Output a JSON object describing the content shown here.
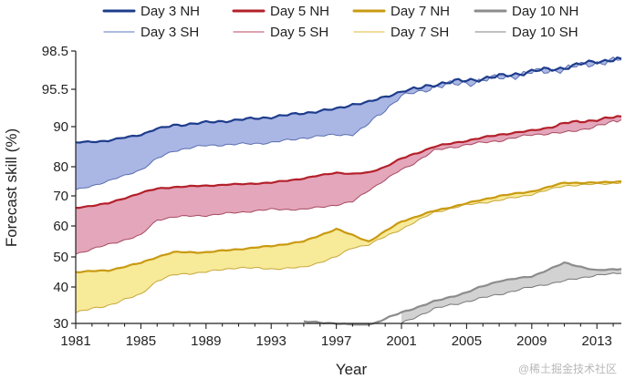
{
  "chart_data": {
    "type": "area",
    "xlabel": "Year",
    "ylabel": "Forecast skill (%)",
    "x_range": [
      1981,
      2014.5
    ],
    "y_range": [
      30,
      98.5
    ],
    "y_scale": "stretched (non-linear, finer near 100%)",
    "xticks": [
      1981,
      1985,
      1989,
      1993,
      1997,
      2001,
      2005,
      2009,
      2013
    ],
    "yticks": [
      30,
      40,
      50,
      60,
      70,
      80,
      90,
      95.5,
      98.5
    ],
    "ytick_labels": [
      "30",
      "40",
      "50",
      "60",
      "70",
      "80",
      "90",
      "95.5",
      "98.5"
    ],
    "grid": false,
    "legend_position": "top",
    "x": [
      1981,
      1983,
      1985,
      1986,
      1987,
      1989,
      1991,
      1993,
      1995,
      1997,
      1998,
      1999,
      2001,
      2003,
      2005,
      2007,
      2009,
      2011,
      2013,
      2014.5
    ],
    "series": [
      {
        "name": "Day 3 NH",
        "values": [
          86,
          86.5,
          88,
          89.5,
          90.2,
          90.6,
          91,
          91.4,
          92,
          92.6,
          93.3,
          93.6,
          95.2,
          95.9,
          96.2,
          96.5,
          96.9,
          97.2,
          97.7,
          97.9
        ]
      },
      {
        "name": "Day 3 SH",
        "values": [
          72,
          75,
          79,
          82,
          84,
          85.3,
          85.6,
          86,
          87.2,
          88,
          88,
          90.5,
          94.5,
          95.7,
          96.0,
          96.4,
          96.8,
          97.1,
          97.6,
          97.8
        ]
      },
      {
        "name": "Day 5 NH",
        "values": [
          66,
          67.5,
          71,
          72.5,
          73,
          73.5,
          74,
          74.5,
          76,
          78,
          77.5,
          78,
          82,
          85,
          86.5,
          88,
          89,
          90.5,
          91,
          91.5
        ]
      },
      {
        "name": "Day 5 SH",
        "values": [
          51,
          54,
          57,
          62,
          63,
          63.5,
          64.5,
          65.5,
          65.5,
          67,
          68,
          72,
          79,
          84,
          85.5,
          86.5,
          88,
          88.5,
          90,
          91
        ]
      },
      {
        "name": "Day 7 NH",
        "values": [
          45,
          45.5,
          48,
          50,
          51.5,
          51.5,
          52.5,
          53.5,
          55,
          59,
          57,
          55,
          61.5,
          65,
          67.5,
          70,
          71.5,
          74.5,
          74.5,
          75
        ]
      },
      {
        "name": "Day 7 SH",
        "values": [
          33,
          35,
          38,
          42,
          44,
          45,
          46.5,
          46,
          46.5,
          50,
          53,
          54,
          59,
          64.5,
          67,
          68.5,
          70.5,
          73.5,
          74,
          74.5
        ]
      },
      {
        "name": "Day 10 NH",
        "values": [
          null,
          null,
          null,
          null,
          null,
          null,
          null,
          null,
          30.5,
          30,
          29.5,
          29.5,
          33,
          36,
          38.5,
          42,
          43.5,
          48,
          45.5,
          46
        ]
      },
      {
        "name": "Day 10 SH",
        "values": [
          null,
          null,
          null,
          null,
          null,
          null,
          null,
          null,
          null,
          null,
          null,
          null,
          30,
          34,
          36,
          38,
          40,
          42,
          44,
          44.5
        ]
      }
    ],
    "bands": [
      {
        "upper": "Day 3 NH",
        "lower": "Day 3 SH"
      },
      {
        "upper": "Day 5 NH",
        "lower": "Day 5 SH"
      },
      {
        "upper": "Day 7 NH",
        "lower": "Day 7 SH"
      },
      {
        "upper": "Day 10 NH",
        "lower": "Day 10 SH"
      }
    ]
  },
  "legend": [
    {
      "label": "Day 3 NH",
      "color": "#1d3c8c",
      "stroke": 3
    },
    {
      "label": "Day 5 NH",
      "color": "#b3202a",
      "stroke": 3
    },
    {
      "label": "Day 7 NH",
      "color": "#c99a12",
      "stroke": 3
    },
    {
      "label": "Day 10 NH",
      "color": "#8c8c8c",
      "stroke": 3
    },
    {
      "label": "Day 3 SH",
      "color": "#7b90cc",
      "stroke": 1.2
    },
    {
      "label": "Day 5 SH",
      "color": "#c9697e",
      "stroke": 1.2
    },
    {
      "label": "Day 7 SH",
      "color": "#e6c85e",
      "stroke": 1.2
    },
    {
      "label": "Day 10 SH",
      "color": "#9a9a9a",
      "stroke": 1.2
    }
  ],
  "colors": {
    "day3_nh": "#1d3c8c",
    "day3_sh": "#5a6fb0",
    "day3_fill": "#aab6e4",
    "day5_nh": "#b3202a",
    "day5_sh": "#a64a60",
    "day5_fill": "#e4a6bb",
    "day7_nh": "#c99a12",
    "day7_sh": "#c7a73a",
    "day7_fill": "#f7ea99",
    "day10_nh": "#8c8c8c",
    "day10_sh": "#777777",
    "day10_fill": "#d2d2d2"
  },
  "watermark": "@稀土掘金技术社区"
}
